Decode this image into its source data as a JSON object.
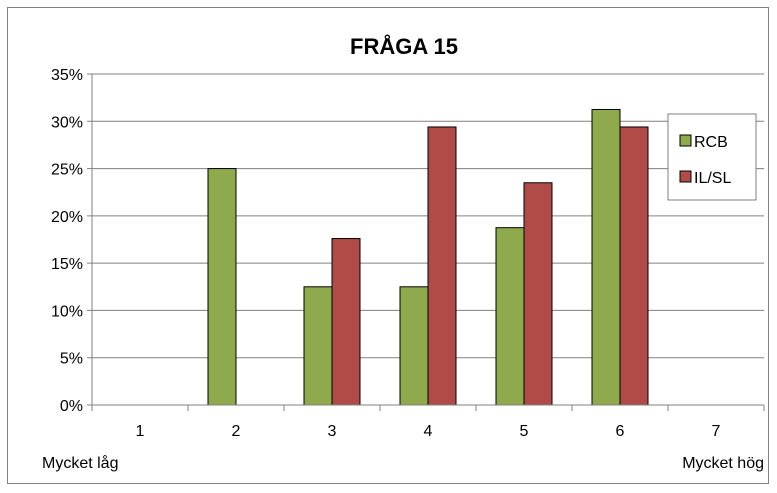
{
  "chart_data": {
    "type": "bar",
    "title": "FRÅGA 15",
    "categories": [
      "1",
      "2",
      "3",
      "4",
      "5",
      "6",
      "7"
    ],
    "y_ticks": [
      "0%",
      "5%",
      "10%",
      "15%",
      "20%",
      "25%",
      "30%",
      "35%"
    ],
    "ylim": [
      0,
      35
    ],
    "ylabel": "",
    "xlabel": "",
    "x_annotations": {
      "low": "Mycket låg",
      "high": "Mycket hög"
    },
    "grid": true,
    "legend_position": "right",
    "series": [
      {
        "name": "RCB",
        "color": "#8faa4c",
        "values": [
          0,
          25.0,
          12.5,
          12.5,
          18.75,
          31.25,
          0
        ]
      },
      {
        "name": "IL/SL",
        "color": "#b04b47",
        "values": [
          0,
          0,
          17.6,
          29.4,
          23.5,
          29.4,
          0
        ]
      }
    ]
  }
}
